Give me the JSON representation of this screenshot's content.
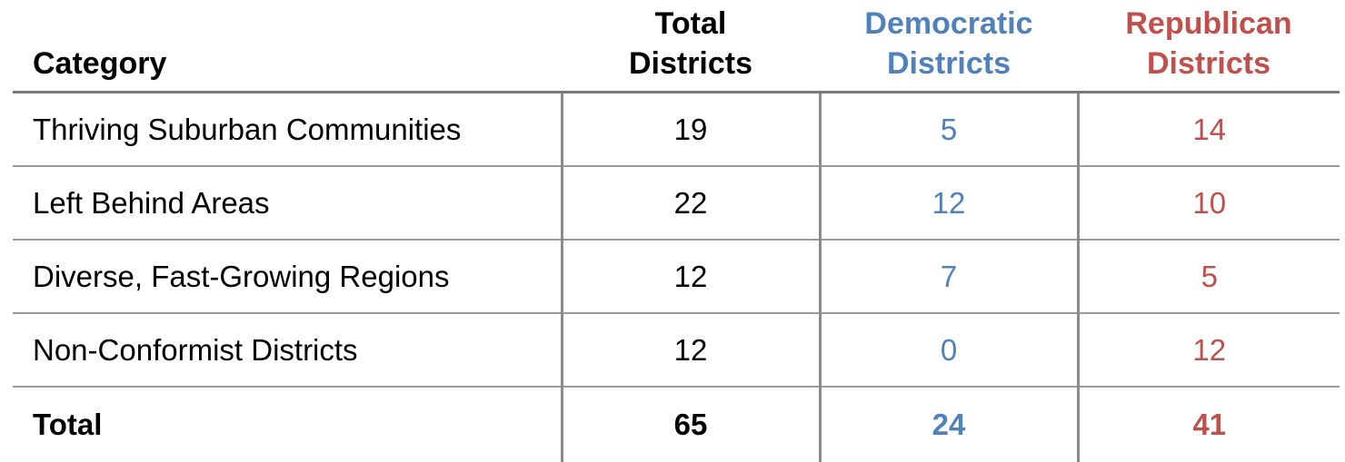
{
  "colors": {
    "democratic": "#4f81bd",
    "republican": "#c0504d",
    "text": "#000000",
    "rule": "#8a8a8a"
  },
  "chart_data": {
    "type": "table",
    "columns": [
      {
        "key": "category",
        "label_lines": [
          "Category"
        ]
      },
      {
        "key": "total",
        "label_lines": [
          "Total",
          "Districts"
        ]
      },
      {
        "key": "democratic",
        "label_lines": [
          "Democratic",
          "Districts"
        ]
      },
      {
        "key": "republican",
        "label_lines": [
          "Republican",
          "Districts"
        ]
      }
    ],
    "rows": [
      {
        "category": "Thriving Suburban Communities",
        "total": "19",
        "democratic": "5",
        "republican": "14"
      },
      {
        "category": "Left Behind Areas",
        "total": "22",
        "democratic": "12",
        "republican": "10"
      },
      {
        "category": "Diverse, Fast-Growing Regions",
        "total": "12",
        "democratic": "7",
        "republican": "5"
      },
      {
        "category": "Non-Conformist Districts",
        "total": "12",
        "democratic": "0",
        "republican": "12"
      }
    ],
    "total_row": {
      "category": "Total",
      "total": "65",
      "democratic": "24",
      "republican": "41"
    }
  }
}
